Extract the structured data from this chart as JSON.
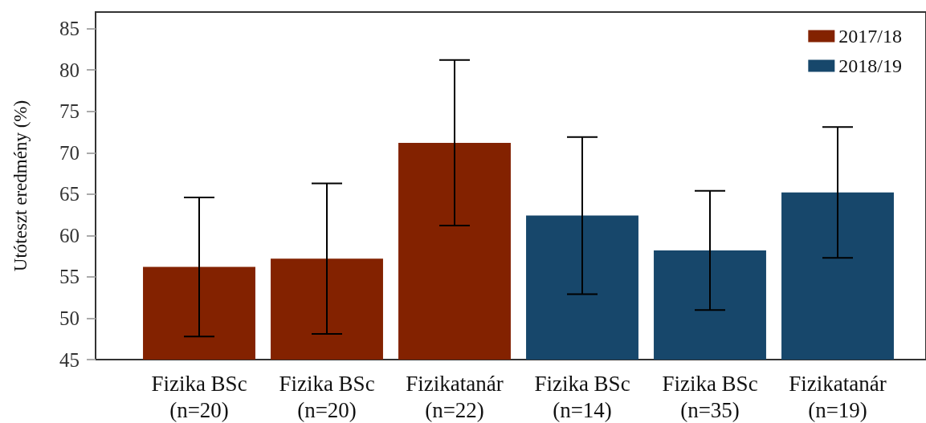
{
  "chart_data": {
    "type": "bar",
    "ylabel": "Utóteszt eredmény (%)",
    "categories": [
      "Fizika BSc\n(n=20)",
      "Fizika BSc\n(n=20)",
      "Fizikatanár\n(n=22)",
      "Fizika BSc\n(n=14)",
      "Fizika BSc\n(n=35)",
      "Fizikatanár\n(n=19)"
    ],
    "series": [
      {
        "name": "2017/18",
        "color": "#832200",
        "values": [
          56.2,
          57.2,
          71.2,
          null,
          null,
          null
        ],
        "errors": [
          8.4,
          9.1,
          10.0,
          null,
          null,
          null
        ]
      },
      {
        "name": "2018/19",
        "color": "#17476b",
        "values": [
          null,
          null,
          null,
          62.4,
          58.2,
          65.2
        ],
        "errors": [
          null,
          null,
          null,
          9.5,
          7.2,
          7.9
        ]
      }
    ],
    "ylim": [
      45,
      87
    ],
    "yticks": [
      45,
      50,
      55,
      60,
      65,
      70,
      75,
      80,
      85
    ],
    "grid": false,
    "legend": "top right"
  }
}
